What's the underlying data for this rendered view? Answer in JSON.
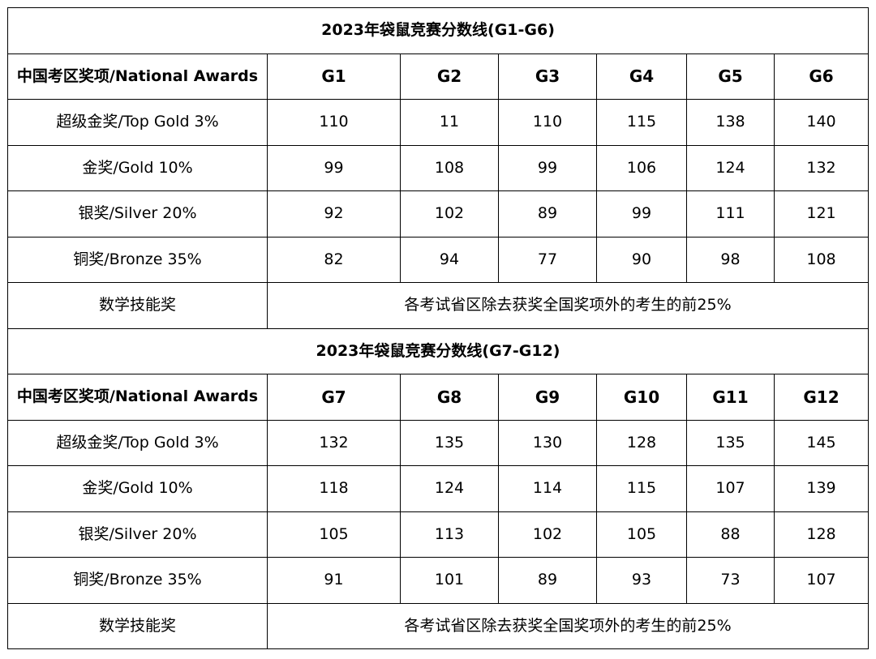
{
  "tables": [
    {
      "title": "2023年袋鼠竞赛分数线(G1-G6)",
      "header": {
        "award_label": "中国考区奖项/National Awards",
        "grades": [
          "G1",
          "G2",
          "G3",
          "G4",
          "G5",
          "G6"
        ]
      },
      "rows": [
        {
          "label": "超级金奖/Top Gold 3%",
          "values": [
            "110",
            "11",
            "110",
            "115",
            "138",
            "140"
          ]
        },
        {
          "label": "金奖/Gold 10%",
          "values": [
            "99",
            "108",
            "99",
            "106",
            "124",
            "132"
          ]
        },
        {
          "label": "银奖/Silver 20%",
          "values": [
            "92",
            "102",
            "89",
            "99",
            "111",
            "121"
          ]
        },
        {
          "label": "铜奖/Bronze 35%",
          "values": [
            "82",
            "94",
            "77",
            "90",
            "98",
            "108"
          ]
        }
      ],
      "skill_award": {
        "label": "数学技能奖",
        "description": "各考试省区除去获奖全国奖项外的考生的前25%"
      }
    },
    {
      "title": "2023年袋鼠竞赛分数线(G7-G12)",
      "header": {
        "award_label": "中国考区奖项/National Awards",
        "grades": [
          "G7",
          "G8",
          "G9",
          "G10",
          "G11",
          "G12"
        ]
      },
      "rows": [
        {
          "label": "超级金奖/Top Gold 3%",
          "values": [
            "132",
            "135",
            "130",
            "128",
            "135",
            "145"
          ]
        },
        {
          "label": "金奖/Gold 10%",
          "values": [
            "118",
            "124",
            "114",
            "115",
            "107",
            "139"
          ]
        },
        {
          "label": "银奖/Silver 20%",
          "values": [
            "105",
            "113",
            "102",
            "105",
            "88",
            "128"
          ]
        },
        {
          "label": "铜奖/Bronze 35%",
          "values": [
            "91",
            "101",
            "89",
            "93",
            "73",
            "107"
          ]
        }
      ],
      "skill_award": {
        "label": "数学技能奖",
        "description": "各考试省区除去获奖全国奖项外的考生的前25%"
      }
    }
  ]
}
